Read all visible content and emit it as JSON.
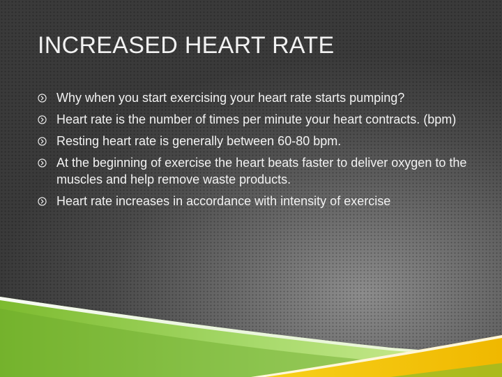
{
  "slide": {
    "title": "INCREASED HEART RATE",
    "bullets": [
      {
        "icon": "circled-arrow-right-icon",
        "text": "Why when you start exercising your heart rate starts pumping?"
      },
      {
        "icon": "circled-arrow-right-icon",
        "text": "Heart rate is the number of times per minute your heart contracts. (bpm)"
      },
      {
        "icon": "circled-arrow-right-icon",
        "text": "Resting heart rate is generally between 60-80 bpm."
      },
      {
        "icon": "circled-arrow-right-icon",
        "text": "At the beginning of exercise the heart beats faster to deliver oxygen to the muscles and help remove waste products."
      },
      {
        "icon": "circled-arrow-right-icon",
        "text": "Heart rate increases in accordance with intensity of exercise"
      }
    ]
  },
  "colors": {
    "text": "#f2f2f2",
    "background_dark": "#3a3a3a",
    "background_light": "#8c8c8c",
    "accent_green": "#8cc63f",
    "accent_yellow": "#f2c400"
  }
}
